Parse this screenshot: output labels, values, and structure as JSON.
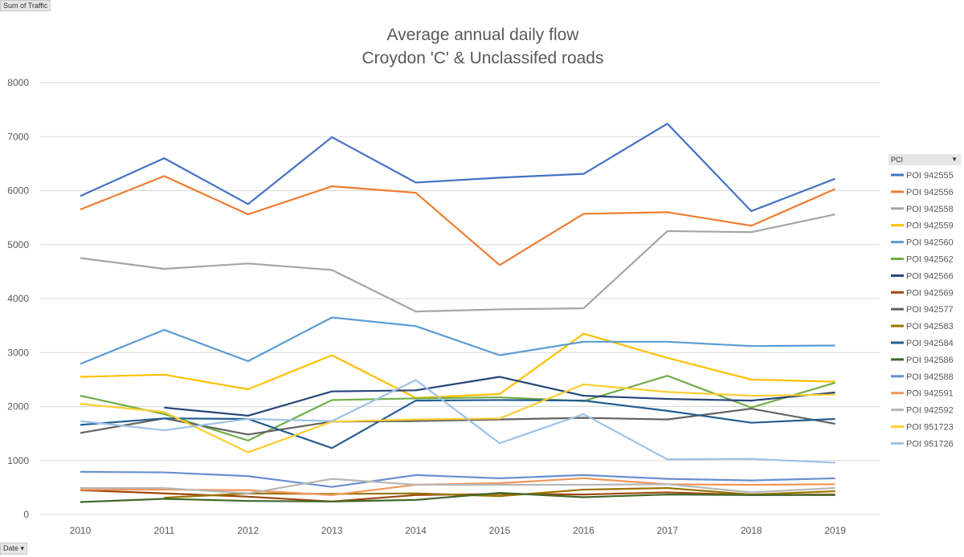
{
  "buttons": {
    "value_field": "Sum of Traffic",
    "axis_field": "Date ▾"
  },
  "legend": {
    "title": "PCI",
    "arrow": "▼"
  },
  "chart_data": {
    "type": "line",
    "title": [
      "Average annual daily flow",
      "Croydon 'C' & Unclassifed roads"
    ],
    "xlabel": "",
    "ylabel": "",
    "categories": [
      "2010",
      "2011",
      "2012",
      "2013",
      "2014",
      "2015",
      "2016",
      "2017",
      "2018",
      "2019"
    ],
    "ylim": [
      0,
      8000
    ],
    "yticks": [
      "0",
      "1000",
      "2000",
      "3000",
      "4000",
      "5000",
      "6000",
      "7000",
      "8000"
    ],
    "grid": true,
    "legend_position": "right",
    "series": [
      {
        "name": "POI 942555",
        "color": "#4472C4",
        "values": [
          5900,
          6600,
          5750,
          6990,
          6150,
          6240,
          6310,
          7240,
          5620,
          6220
        ]
      },
      {
        "name": "POI 942556",
        "color": "#ED7D31",
        "values": [
          5650,
          6270,
          5560,
          6080,
          5960,
          4620,
          5570,
          5600,
          5350,
          6030
        ]
      },
      {
        "name": "POI 942558",
        "color": "#A5A5A5",
        "values": [
          4750,
          4550,
          4650,
          4530,
          3760,
          3800,
          3820,
          5250,
          5230,
          5560
        ]
      },
      {
        "name": "POI 942559",
        "color": "#FFC000",
        "values": [
          2550,
          2590,
          2320,
          2950,
          2160,
          2230,
          3350,
          2900,
          2500,
          2460
        ]
      },
      {
        "name": "POI 942560",
        "color": "#5B9BD5",
        "values": [
          2790,
          3420,
          2840,
          3650,
          3490,
          2950,
          3200,
          3200,
          3120,
          3130
        ]
      },
      {
        "name": "POI 942562",
        "color": "#70AD47",
        "values": [
          2200,
          1860,
          1370,
          2120,
          2150,
          2170,
          2100,
          2570,
          1980,
          2440
        ]
      },
      {
        "name": "POI 942566",
        "color": "#264478",
        "values": [
          null,
          1980,
          1830,
          2280,
          2300,
          2550,
          2200,
          2140,
          2110,
          2260
        ]
      },
      {
        "name": "POI 942569",
        "color": "#9E480E",
        "values": [
          450,
          390,
          330,
          240,
          360,
          380,
          370,
          410,
          360,
          370
        ]
      },
      {
        "name": "POI 942577",
        "color": "#636363",
        "values": [
          1510,
          1780,
          1480,
          1720,
          1730,
          1760,
          1790,
          1760,
          1960,
          1680
        ]
      },
      {
        "name": "POI 942583",
        "color": "#997300",
        "values": [
          null,
          310,
          390,
          380,
          390,
          340,
          460,
          490,
          370,
          430
        ]
      },
      {
        "name": "POI 942584",
        "color": "#255E91",
        "values": [
          1660,
          1780,
          1770,
          1230,
          2110,
          2120,
          2110,
          1920,
          1700,
          1770
        ]
      },
      {
        "name": "POI 942586",
        "color": "#43682B",
        "values": [
          230,
          290,
          250,
          240,
          270,
          400,
          320,
          370,
          360,
          360
        ]
      },
      {
        "name": "POI 942588",
        "color": "#698ED0",
        "values": [
          790,
          780,
          710,
          510,
          730,
          670,
          730,
          660,
          630,
          670
        ]
      },
      {
        "name": "POI 942591",
        "color": "#F1975A",
        "values": [
          460,
          460,
          450,
          360,
          550,
          580,
          670,
          560,
          550,
          560
        ]
      },
      {
        "name": "POI 942592",
        "color": "#B7B7B7",
        "values": [
          490,
          490,
          390,
          660,
          550,
          550,
          550,
          560,
          410,
          490
        ]
      },
      {
        "name": "POI 951723",
        "color": "#FFCD33",
        "values": [
          2050,
          1900,
          1150,
          1720,
          1760,
          1780,
          2410,
          2270,
          2200,
          2220
        ]
      },
      {
        "name": "POI 951726",
        "color": "#9DC3E6",
        "values": [
          1730,
          1560,
          1770,
          1730,
          2490,
          1320,
          1860,
          1020,
          1030,
          960
        ]
      }
    ]
  }
}
